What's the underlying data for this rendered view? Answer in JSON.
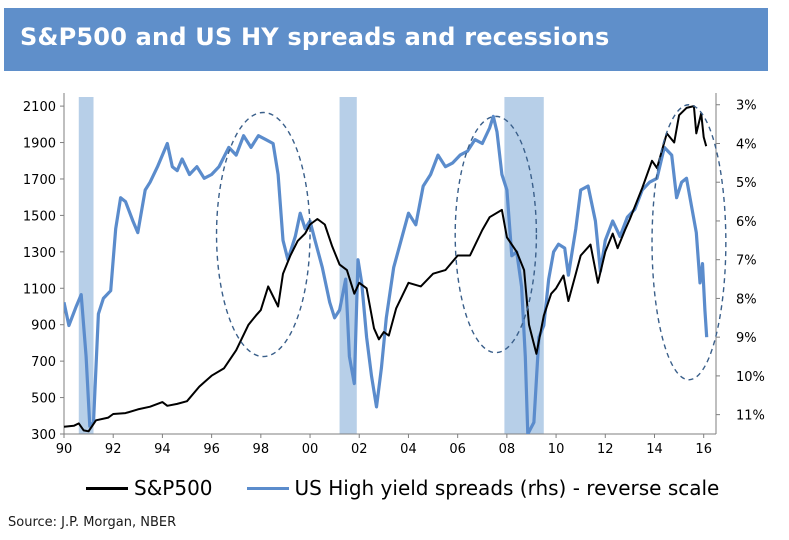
{
  "title": "S&P500 and US HY spreads and recessions",
  "source": "Source:  J.P. Morgan,  NBER",
  "colors": {
    "sp500": "#000000",
    "hy": "#5b8ccc",
    "recession": "#b7cfe8",
    "header": "#5f8fca",
    "ellipse": "#3a5f8a"
  },
  "chart_data": {
    "type": "line",
    "x_tick_labels": [
      "90",
      "92",
      "94",
      "96",
      "98",
      "00",
      "02",
      "04",
      "06",
      "08",
      "10",
      "12",
      "14",
      "16"
    ],
    "x_range": [
      1990,
      2016.5
    ],
    "y_left": {
      "ticks": [
        2100,
        1900,
        1700,
        1500,
        1300,
        1100,
        900,
        700,
        500,
        300
      ],
      "range": [
        300,
        2150
      ]
    },
    "y_right": {
      "tick_labels": [
        "3%",
        "4%",
        "5%",
        "6%",
        "7%",
        "8%",
        "9%",
        "10%",
        "11%"
      ],
      "range": [
        2.8,
        11.5
      ],
      "reversed": true
    },
    "recessions": [
      [
        1990.6,
        1991.2
      ],
      [
        2001.2,
        2001.9
      ],
      [
        2007.9,
        2009.5
      ]
    ],
    "highlight_ellipses": [
      {
        "x": [
          1996.2,
          2000.0
        ],
        "y": [
          3.2,
          9.5
        ]
      },
      {
        "x": [
          2005.9,
          2009.2
        ],
        "y": [
          3.3,
          9.4
        ]
      },
      {
        "x": [
          2013.9,
          2016.9
        ],
        "y": [
          3.0,
          10.1
        ]
      }
    ],
    "series": [
      {
        "name": "S&P500",
        "axis": "left",
        "points": [
          [
            1990.0,
            340
          ],
          [
            1990.4,
            345
          ],
          [
            1990.6,
            358
          ],
          [
            1990.8,
            320
          ],
          [
            1991.0,
            315
          ],
          [
            1991.3,
            375
          ],
          [
            1991.8,
            390
          ],
          [
            1992.0,
            410
          ],
          [
            1992.5,
            415
          ],
          [
            1993.0,
            435
          ],
          [
            1993.5,
            450
          ],
          [
            1994.0,
            475
          ],
          [
            1994.2,
            455
          ],
          [
            1994.6,
            465
          ],
          [
            1995.0,
            480
          ],
          [
            1995.5,
            560
          ],
          [
            1996.0,
            620
          ],
          [
            1996.5,
            660
          ],
          [
            1997.0,
            760
          ],
          [
            1997.5,
            900
          ],
          [
            1997.8,
            950
          ],
          [
            1998.0,
            980
          ],
          [
            1998.3,
            1110
          ],
          [
            1998.7,
            1000
          ],
          [
            1998.9,
            1180
          ],
          [
            1999.2,
            1280
          ],
          [
            1999.5,
            1360
          ],
          [
            1999.8,
            1400
          ],
          [
            2000.0,
            1450
          ],
          [
            2000.3,
            1480
          ],
          [
            2000.6,
            1450
          ],
          [
            2000.9,
            1330
          ],
          [
            2001.2,
            1230
          ],
          [
            2001.5,
            1200
          ],
          [
            2001.8,
            1070
          ],
          [
            2002.0,
            1130
          ],
          [
            2002.3,
            1100
          ],
          [
            2002.6,
            880
          ],
          [
            2002.8,
            820
          ],
          [
            2003.0,
            860
          ],
          [
            2003.2,
            840
          ],
          [
            2003.5,
            990
          ],
          [
            2004.0,
            1130
          ],
          [
            2004.5,
            1110
          ],
          [
            2005.0,
            1180
          ],
          [
            2005.5,
            1200
          ],
          [
            2006.0,
            1280
          ],
          [
            2006.5,
            1280
          ],
          [
            2007.0,
            1420
          ],
          [
            2007.3,
            1490
          ],
          [
            2007.8,
            1530
          ],
          [
            2008.0,
            1380
          ],
          [
            2008.4,
            1300
          ],
          [
            2008.7,
            1200
          ],
          [
            2008.9,
            900
          ],
          [
            2009.2,
            740
          ],
          [
            2009.5,
            950
          ],
          [
            2009.8,
            1070
          ],
          [
            2010.0,
            1100
          ],
          [
            2010.3,
            1170
          ],
          [
            2010.5,
            1030
          ],
          [
            2010.8,
            1180
          ],
          [
            2011.0,
            1280
          ],
          [
            2011.4,
            1340
          ],
          [
            2011.7,
            1130
          ],
          [
            2012.0,
            1300
          ],
          [
            2012.3,
            1400
          ],
          [
            2012.5,
            1320
          ],
          [
            2012.8,
            1420
          ],
          [
            2013.0,
            1480
          ],
          [
            2013.5,
            1650
          ],
          [
            2013.9,
            1800
          ],
          [
            2014.1,
            1760
          ],
          [
            2014.5,
            1950
          ],
          [
            2014.8,
            1900
          ],
          [
            2015.0,
            2050
          ],
          [
            2015.3,
            2090
          ],
          [
            2015.6,
            2100
          ],
          [
            2015.7,
            1950
          ],
          [
            2015.9,
            2060
          ],
          [
            2016.0,
            1930
          ],
          [
            2016.1,
            1880
          ]
        ]
      },
      {
        "name": "US High yield spreads (rhs) - reverse scale",
        "axis": "right",
        "points": [
          [
            1990.0,
            8.1
          ],
          [
            1990.2,
            8.7
          ],
          [
            1990.5,
            8.2
          ],
          [
            1990.7,
            7.9
          ],
          [
            1990.9,
            9.5
          ],
          [
            1991.05,
            11.3
          ],
          [
            1991.2,
            11.2
          ],
          [
            1991.4,
            8.4
          ],
          [
            1991.6,
            8.0
          ],
          [
            1991.9,
            7.8
          ],
          [
            1992.1,
            6.2
          ],
          [
            1992.3,
            5.4
          ],
          [
            1992.5,
            5.5
          ],
          [
            1992.8,
            6.0
          ],
          [
            1993.0,
            6.3
          ],
          [
            1993.3,
            5.2
          ],
          [
            1993.5,
            5.0
          ],
          [
            1993.8,
            4.6
          ],
          [
            1994.2,
            4.0
          ],
          [
            1994.4,
            4.6
          ],
          [
            1994.6,
            4.7
          ],
          [
            1994.8,
            4.4
          ],
          [
            1995.1,
            4.8
          ],
          [
            1995.4,
            4.6
          ],
          [
            1995.7,
            4.9
          ],
          [
            1996.0,
            4.8
          ],
          [
            1996.3,
            4.6
          ],
          [
            1996.7,
            4.1
          ],
          [
            1997.0,
            4.3
          ],
          [
            1997.3,
            3.8
          ],
          [
            1997.6,
            4.1
          ],
          [
            1997.9,
            3.8
          ],
          [
            1998.2,
            3.9
          ],
          [
            1998.5,
            4.0
          ],
          [
            1998.7,
            4.8
          ],
          [
            1998.9,
            6.5
          ],
          [
            1999.1,
            7.0
          ],
          [
            1999.4,
            6.4
          ],
          [
            1999.6,
            5.8
          ],
          [
            1999.8,
            6.2
          ],
          [
            2000.0,
            6.0
          ],
          [
            2000.2,
            6.5
          ],
          [
            2000.5,
            7.2
          ],
          [
            2000.8,
            8.1
          ],
          [
            2001.0,
            8.5
          ],
          [
            2001.2,
            8.3
          ],
          [
            2001.45,
            7.5
          ],
          [
            2001.6,
            9.5
          ],
          [
            2001.8,
            10.2
          ],
          [
            2001.95,
            7.0
          ],
          [
            2002.1,
            7.6
          ],
          [
            2002.3,
            9.0
          ],
          [
            2002.5,
            10.0
          ],
          [
            2002.7,
            10.8
          ],
          [
            2002.9,
            9.8
          ],
          [
            2003.1,
            8.5
          ],
          [
            2003.4,
            7.2
          ],
          [
            2003.7,
            6.5
          ],
          [
            2004.0,
            5.8
          ],
          [
            2004.3,
            6.1
          ],
          [
            2004.6,
            5.1
          ],
          [
            2004.9,
            4.8
          ],
          [
            2005.2,
            4.3
          ],
          [
            2005.5,
            4.6
          ],
          [
            2005.8,
            4.5
          ],
          [
            2006.1,
            4.3
          ],
          [
            2006.4,
            4.2
          ],
          [
            2006.7,
            3.9
          ],
          [
            2007.0,
            4.0
          ],
          [
            2007.3,
            3.6
          ],
          [
            2007.45,
            3.3
          ],
          [
            2007.6,
            3.7
          ],
          [
            2007.8,
            4.8
          ],
          [
            2008.0,
            5.2
          ],
          [
            2008.2,
            6.9
          ],
          [
            2008.4,
            6.8
          ],
          [
            2008.6,
            7.7
          ],
          [
            2008.75,
            9.5
          ],
          [
            2008.85,
            11.5
          ],
          [
            2009.1,
            11.2
          ],
          [
            2009.3,
            9.0
          ],
          [
            2009.5,
            8.7
          ],
          [
            2009.7,
            7.5
          ],
          [
            2009.9,
            6.8
          ],
          [
            2010.1,
            6.6
          ],
          [
            2010.35,
            6.7
          ],
          [
            2010.5,
            7.4
          ],
          [
            2010.8,
            6.2
          ],
          [
            2011.0,
            5.2
          ],
          [
            2011.3,
            5.1
          ],
          [
            2011.6,
            6.0
          ],
          [
            2011.8,
            7.3
          ],
          [
            2012.0,
            6.5
          ],
          [
            2012.3,
            6.0
          ],
          [
            2012.6,
            6.4
          ],
          [
            2012.9,
            5.9
          ],
          [
            2013.2,
            5.7
          ],
          [
            2013.5,
            5.2
          ],
          [
            2013.8,
            5.0
          ],
          [
            2014.1,
            4.9
          ],
          [
            2014.4,
            4.1
          ],
          [
            2014.7,
            4.3
          ],
          [
            2014.9,
            5.4
          ],
          [
            2015.1,
            5.0
          ],
          [
            2015.3,
            4.9
          ],
          [
            2015.5,
            5.6
          ],
          [
            2015.7,
            6.3
          ],
          [
            2015.85,
            7.6
          ],
          [
            2015.95,
            7.1
          ],
          [
            2016.05,
            8.3
          ],
          [
            2016.12,
            9.0
          ]
        ]
      }
    ],
    "xlabel": "",
    "ylabel": ""
  }
}
